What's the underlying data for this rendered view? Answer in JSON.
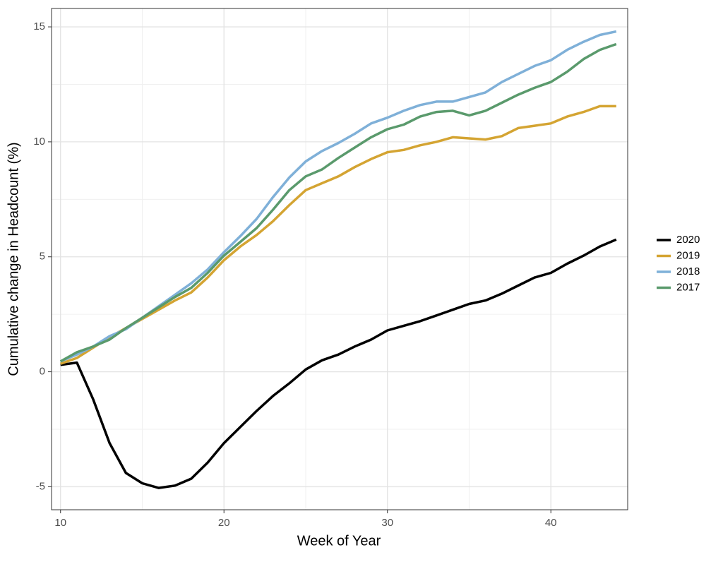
{
  "chart_data": {
    "type": "line",
    "x_label": "Week of Year",
    "y_label": "Cumulative change in Headcount (%)",
    "x": [
      10,
      11,
      12,
      13,
      14,
      15,
      16,
      17,
      18,
      19,
      20,
      21,
      22,
      23,
      24,
      25,
      26,
      27,
      28,
      29,
      30,
      31,
      32,
      33,
      34,
      35,
      36,
      37,
      38,
      39,
      40,
      41,
      42,
      43,
      44
    ],
    "series": [
      {
        "name": "2020",
        "color": "#000000",
        "values": [
          0.3,
          0.4,
          -1.2,
          -3.1,
          -4.4,
          -4.85,
          -5.05,
          -4.95,
          -4.65,
          -3.95,
          -3.1,
          -2.4,
          -1.7,
          -1.05,
          -0.5,
          0.1,
          0.5,
          0.75,
          1.1,
          1.4,
          1.8,
          2.0,
          2.2,
          2.45,
          2.7,
          2.95,
          3.1,
          3.4,
          3.75,
          4.1,
          4.3,
          4.7,
          5.05,
          5.45,
          5.75
        ]
      },
      {
        "name": "2019",
        "color": "#d4a432",
        "values": [
          0.35,
          0.6,
          1.05,
          1.5,
          1.9,
          2.3,
          2.7,
          3.1,
          3.45,
          4.1,
          4.85,
          5.45,
          5.95,
          6.55,
          7.25,
          7.9,
          8.2,
          8.5,
          8.9,
          9.25,
          9.55,
          9.65,
          9.85,
          10.0,
          10.2,
          10.15,
          10.1,
          10.25,
          10.6,
          10.7,
          10.8,
          11.1,
          11.3,
          11.55,
          11.55
        ]
      },
      {
        "name": "2018",
        "color": "#7fb0d8",
        "values": [
          0.45,
          0.75,
          1.1,
          1.55,
          1.85,
          2.35,
          2.85,
          3.35,
          3.85,
          4.45,
          5.2,
          5.9,
          6.65,
          7.6,
          8.45,
          9.15,
          9.6,
          9.95,
          10.35,
          10.8,
          11.05,
          11.35,
          11.6,
          11.75,
          11.75,
          11.95,
          12.15,
          12.6,
          12.95,
          13.3,
          13.55,
          14.0,
          14.35,
          14.65,
          14.8
        ]
      },
      {
        "name": "2017",
        "color": "#5a9a6c",
        "values": [
          0.45,
          0.85,
          1.1,
          1.4,
          1.9,
          2.35,
          2.8,
          3.25,
          3.65,
          4.3,
          5.05,
          5.65,
          6.25,
          7.05,
          7.9,
          8.5,
          8.8,
          9.3,
          9.75,
          10.2,
          10.55,
          10.75,
          11.1,
          11.3,
          11.35,
          11.15,
          11.35,
          11.7,
          12.05,
          12.35,
          12.6,
          13.05,
          13.6,
          14.0,
          14.25
        ]
      }
    ],
    "xlim": [
      9.45,
      44.7
    ],
    "xticks": [
      10,
      20,
      30,
      40
    ],
    "ylim": [
      -6.0,
      15.8
    ],
    "yticks": [
      -5,
      0,
      5,
      10,
      15
    ],
    "grid": true,
    "legend": "right"
  }
}
